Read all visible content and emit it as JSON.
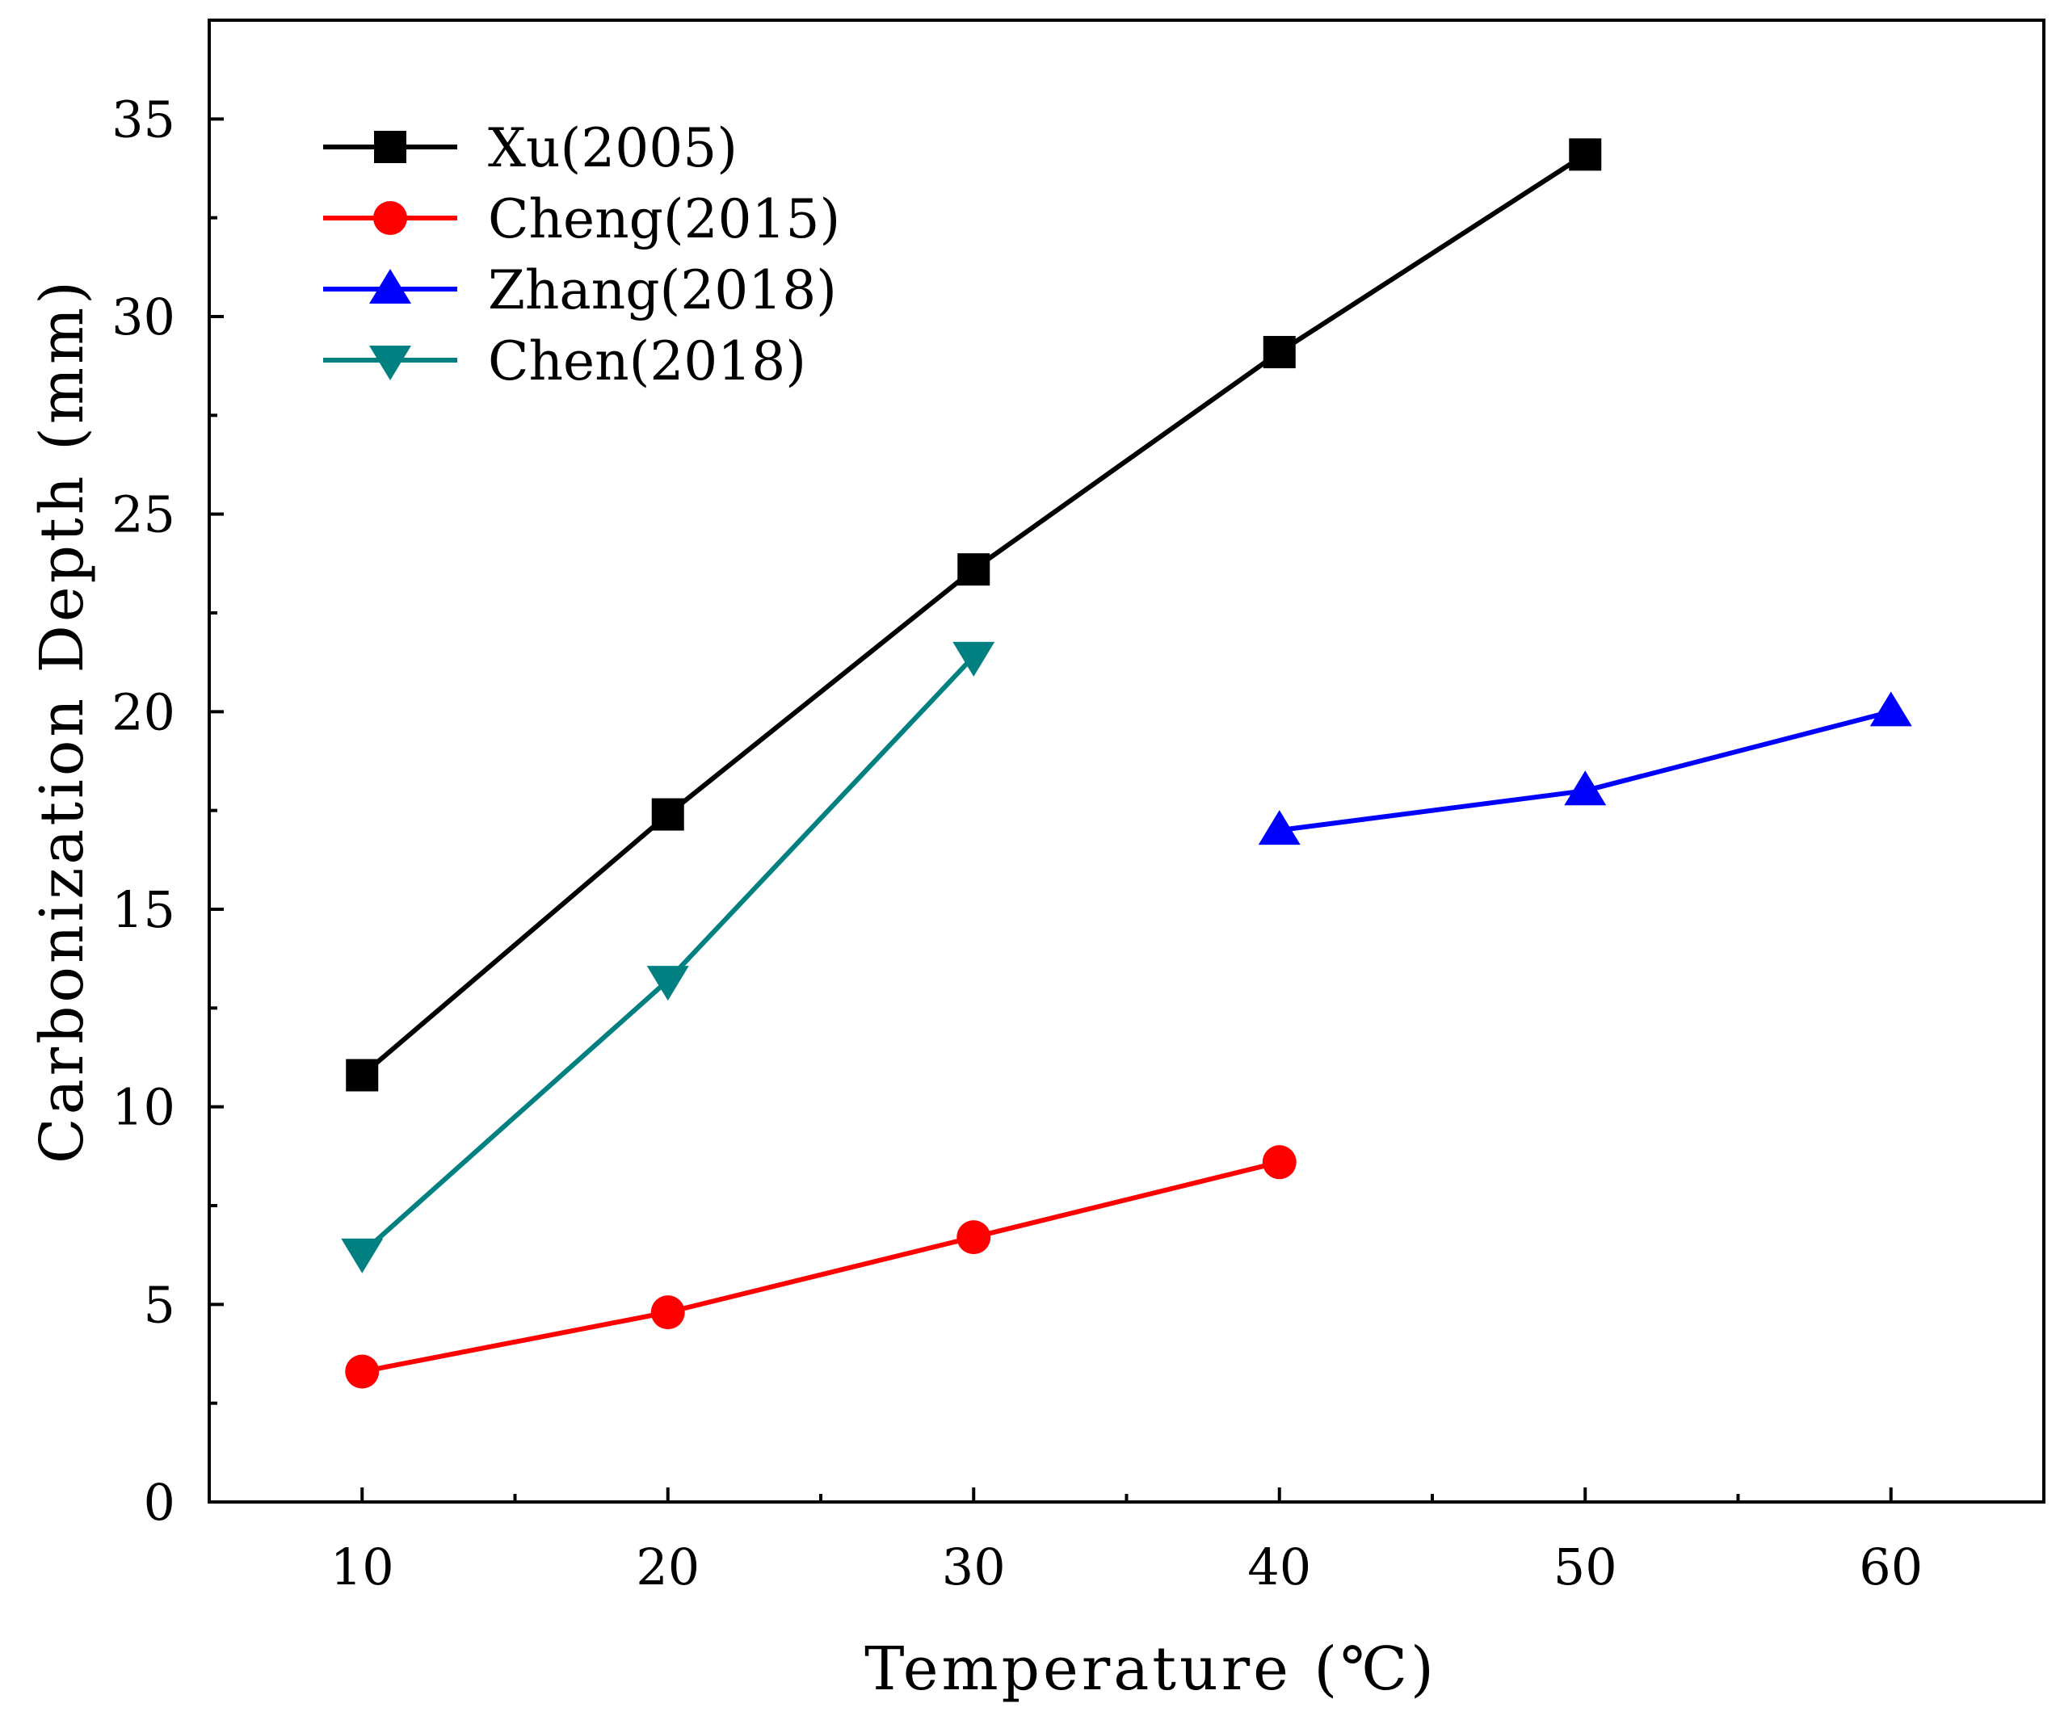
{
  "chart_data": {
    "type": "line",
    "title": "",
    "xlabel": "Temperature (℃)",
    "ylabel": "Carbonization Depth (mm)",
    "xlim": [
      5,
      65
    ],
    "ylim": [
      0,
      37.5
    ],
    "x_ticks": [
      10,
      20,
      30,
      40,
      50,
      60
    ],
    "x_minor_ticks": [
      15,
      25,
      35,
      45,
      55
    ],
    "y_ticks": [
      0,
      5,
      10,
      15,
      20,
      25,
      30,
      35
    ],
    "y_minor_ticks": [
      2.5,
      7.5,
      12.5,
      17.5,
      22.5,
      27.5,
      32.5
    ],
    "grid": false,
    "legend_position": "top-left",
    "series": [
      {
        "name": "Xu(2005)",
        "color": "#000000",
        "marker": "square",
        "x": [
          10,
          20,
          30,
          40,
          50
        ],
        "values": [
          10.8,
          17.4,
          23.6,
          29.1,
          34.1
        ]
      },
      {
        "name": "Cheng(2015)",
        "color": "#ff0000",
        "marker": "circle",
        "x": [
          10,
          20,
          30,
          40
        ],
        "values": [
          3.3,
          4.8,
          6.7,
          8.6
        ]
      },
      {
        "name": "Zhang(2018)",
        "color": "#0000ff",
        "marker": "triangle-up",
        "x": [
          40,
          50,
          60
        ],
        "values": [
          17.0,
          18.0,
          20.0
        ]
      },
      {
        "name": "Chen(2018)",
        "color": "#008080",
        "marker": "triangle-down",
        "x": [
          10,
          20,
          30
        ],
        "values": [
          6.3,
          13.2,
          21.4
        ]
      }
    ]
  }
}
